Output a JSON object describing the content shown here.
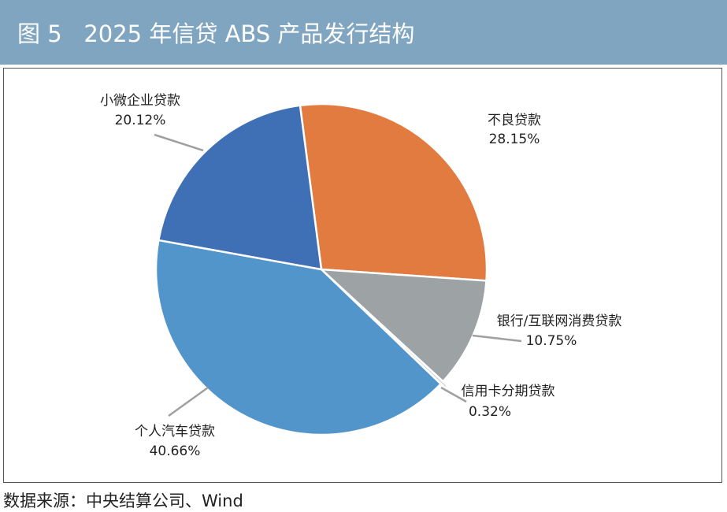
{
  "header": {
    "title": "图 5   2025 年信贷 ABS 产品发行结构"
  },
  "chart_data": {
    "type": "pie",
    "categories": [
      "不良贷款",
      "银行/互联网消费贷款",
      "信用卡分期贷款",
      "个人汽车贷款",
      "小微企业贷款"
    ],
    "values": [
      28.15,
      10.75,
      0.32,
      40.66,
      20.12
    ],
    "value_labels": [
      "28.15%",
      "10.75%",
      "0.32%",
      "40.66%",
      "20.12%"
    ],
    "colors": [
      "#e17b40",
      "#9da2a5",
      "#d7dadc",
      "#5295ca",
      "#3f6fb5"
    ]
  },
  "footer": {
    "source": "数据来源：中央结算公司、Wind"
  }
}
